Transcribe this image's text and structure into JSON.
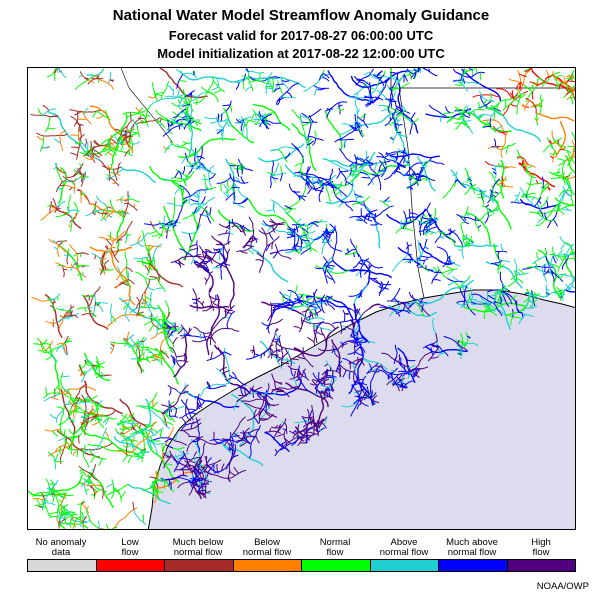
{
  "header": {
    "title": "National Water Model Streamflow Anomaly Guidance",
    "forecast": "Forecast valid for 2017-08-27 06:00:00 UTC",
    "initialization": "Model initialization at 2017-08-22 12:00:00 UTC"
  },
  "legend": [
    {
      "line1": "No anomaly",
      "line2": "data",
      "color": "#d8d8d8"
    },
    {
      "line1": "Low",
      "line2": "flow",
      "color": "#ff0000"
    },
    {
      "line1": "Much below",
      "line2": "normal flow",
      "color": "#a52a2a"
    },
    {
      "line1": "Below",
      "line2": "normal flow",
      "color": "#ff8000"
    },
    {
      "line1": "Normal",
      "line2": "flow",
      "color": "#00ff00"
    },
    {
      "line1": "Above",
      "line2": "normal flow",
      "color": "#20d0d0"
    },
    {
      "line1": "Much above",
      "line2": "normal flow",
      "color": "#0000ff"
    },
    {
      "line1": "High",
      "line2": "flow",
      "color": "#50007f"
    }
  ],
  "map": {
    "water_color": "#dcdcee",
    "land_color": "#ffffff"
  },
  "credit": "NOAA/OWP"
}
